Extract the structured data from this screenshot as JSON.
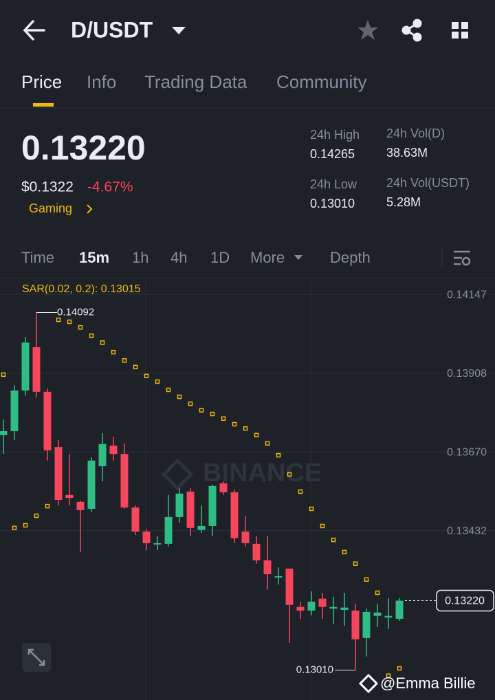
{
  "header": {
    "pair": "D/USDT"
  },
  "tabs": [
    "Price",
    "Info",
    "Trading Data",
    "Community"
  ],
  "price": {
    "last": "0.13220",
    "usd": "$0.1322",
    "change": "-4.67%",
    "tag": "Gaming"
  },
  "stats": [
    {
      "label": "24h High",
      "value": "0.14265"
    },
    {
      "label": "24h Vol(D)",
      "value": "38.63M"
    },
    {
      "label": "24h Low",
      "value": "0.13010"
    },
    {
      "label": "24h Vol(USDT)",
      "value": "5.28M"
    }
  ],
  "intervals": [
    "Time",
    "15m",
    "1h",
    "4h",
    "1D",
    "More",
    "Depth"
  ],
  "watermark": "@Emma Billie",
  "chart_data": {
    "type": "candlestick",
    "indicator_label": "SAR(0.02, 0.2): 0.13015",
    "chart_watermark": "BINANCE",
    "open": [
      0.13721,
      0.13733,
      0.13856,
      0.13987,
      0.13852,
      0.13685,
      0.1354,
      0.13519,
      0.13498,
      0.13627,
      0.13689,
      0.13664,
      0.13502,
      0.13429,
      0.1339,
      0.13392,
      0.13473,
      0.1355,
      0.13434,
      0.13446,
      0.13575,
      0.13548,
      0.13429,
      0.13392,
      0.13342,
      0.1329,
      0.13317,
      0.13201,
      0.1319,
      0.13226,
      0.13196,
      0.13192,
      0.1319,
      0.13107,
      0.13174,
      0.13169,
      0.13165
    ],
    "high": [
      0.13768,
      0.13872,
      0.14018,
      0.14092,
      0.13862,
      0.13706,
      0.13664,
      0.13523,
      0.13654,
      0.13727,
      0.13716,
      0.13696,
      0.13508,
      0.13436,
      0.13415,
      0.1354,
      0.1356,
      0.1356,
      0.13508,
      0.13571,
      0.13581,
      0.13556,
      0.13477,
      0.13415,
      0.13415,
      0.13321,
      0.13317,
      0.13217,
      0.13248,
      0.13244,
      0.13232,
      0.13244,
      0.13211,
      0.13196,
      0.13211,
      0.13228,
      0.13228
    ],
    "low": [
      0.13664,
      0.13706,
      0.13841,
      0.13835,
      0.13644,
      0.13508,
      0.13508,
      0.13367,
      0.13488,
      0.13581,
      0.13644,
      0.13498,
      0.13419,
      0.13373,
      0.13373,
      0.13384,
      0.13456,
      0.13415,
      0.13425,
      0.13415,
      0.1354,
      0.13394,
      0.13384,
      0.13332,
      0.13253,
      0.13269,
      0.13092,
      0.13165,
      0.13176,
      0.13165,
      0.13149,
      0.13144,
      0.1301,
      0.13051,
      0.1314,
      0.13134,
      0.13159
    ],
    "close": [
      0.13733,
      0.13856,
      0.14001,
      0.13852,
      0.13675,
      0.13525,
      0.13531,
      0.13494,
      0.13644,
      0.13694,
      0.13664,
      0.13502,
      0.13429,
      0.13394,
      0.13394,
      0.13473,
      0.13544,
      0.1344,
      0.13446,
      0.13567,
      0.13548,
      0.13409,
      0.13394,
      0.13342,
      0.133,
      0.13294,
      0.13207,
      0.1319,
      0.13217,
      0.13201,
      0.13201,
      0.13199,
      0.13103,
      0.13186,
      0.13184,
      0.13174,
      0.1322
    ],
    "sar": [
      0.13904,
      0.1344,
      0.13448,
      0.13477,
      0.13506,
      0.1407,
      0.14064,
      0.14047,
      0.14022,
      0.14001,
      0.13972,
      0.13947,
      0.13927,
      0.139,
      0.13883,
      0.13858,
      0.13837,
      0.13816,
      0.13796,
      0.13785,
      0.13771,
      0.13754,
      0.13741,
      0.13721,
      0.13696,
      0.1366,
      0.13602,
      0.1355,
      0.13498,
      0.13446,
      0.13404,
      0.13367,
      0.13332,
      0.13284,
      0.13244,
      0.12993,
      0.13015
    ],
    "ylim": [
      0.12936,
      0.14195
    ],
    "yticks": [
      0.14147,
      0.13908,
      {
        "value": 0.1367,
        "label": "0.13670"
      },
      0.13432
    ],
    "last_price": {
      "value": 0.1322,
      "label": "0.13220"
    },
    "annotations": [
      {
        "x": 3,
        "y": 0.14092,
        "label": "0.14092"
      },
      {
        "x": 32,
        "y": 0.1301,
        "label": "0.13010"
      }
    ],
    "up_color": "#2ebd85",
    "down_color": "#f6465d",
    "sar_color": "#f0b90b",
    "grid": true
  }
}
